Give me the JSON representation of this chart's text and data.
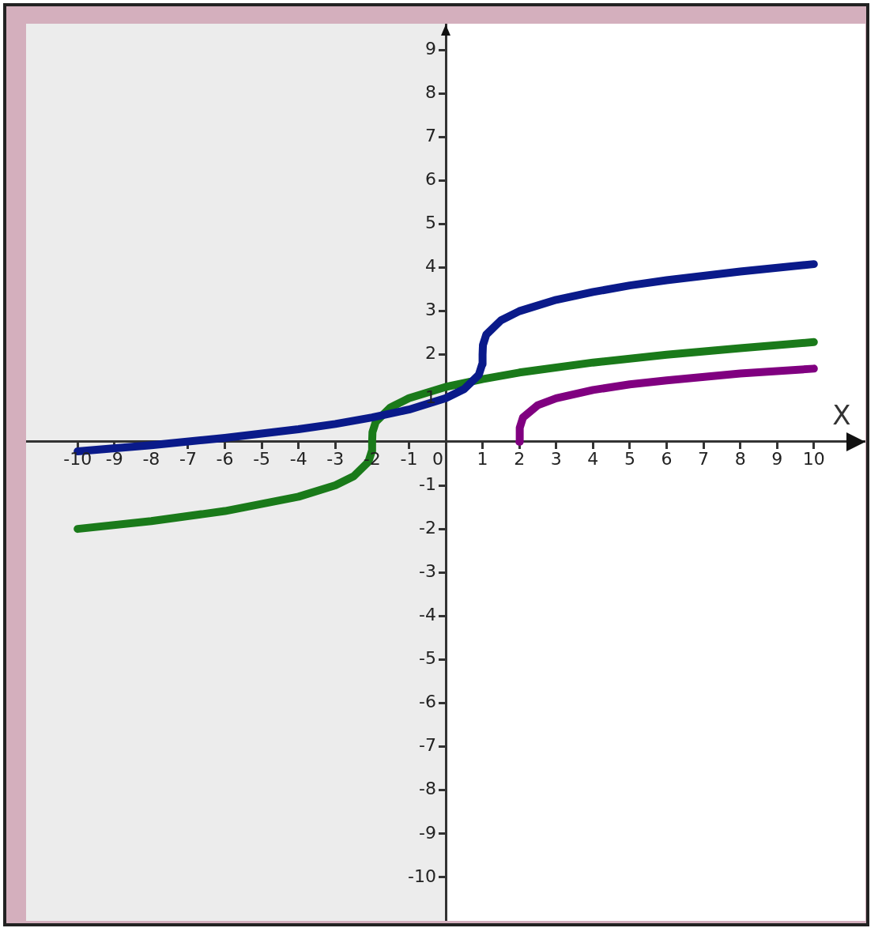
{
  "chart_data": {
    "type": "line",
    "xlabel": "X",
    "xlim": [
      -11.4,
      11.4
    ],
    "ylim": [
      -11,
      9.6
    ],
    "xticks": [
      -10,
      -9,
      -8,
      -7,
      -6,
      -5,
      -4,
      -3,
      -2,
      -1,
      0,
      1,
      2,
      3,
      4,
      5,
      6,
      7,
      8,
      9,
      10
    ],
    "yticks": [
      -10,
      -9,
      -8,
      -7,
      -6,
      -5,
      -4,
      -3,
      -2,
      -1,
      1,
      2,
      3,
      4,
      5,
      6,
      7,
      8,
      9
    ],
    "grid": false,
    "legend": false,
    "marker": "none",
    "line_style": "solid",
    "bands": [
      {
        "axis": "x",
        "from": -11.4,
        "to": 0,
        "color": "#ececec"
      }
    ],
    "series": [
      {
        "color": "#0a1a8a",
        "x": [
          -10,
          -8,
          -6,
          -4,
          -3,
          -2,
          -1,
          0,
          0.5,
          0.9,
          0.99,
          1,
          1.01,
          1.1,
          1.5,
          2,
          3,
          4,
          5,
          6,
          8,
          10
        ],
        "values": [
          -0.22,
          -0.08,
          0.09,
          0.29,
          0.41,
          0.56,
          0.74,
          1,
          1.21,
          1.54,
          1.78,
          2,
          2.22,
          2.46,
          2.79,
          3,
          3.26,
          3.44,
          3.59,
          3.71,
          3.91,
          4.08
        ]
      },
      {
        "color": "#1a7a1a",
        "x": [
          -10,
          -8,
          -6,
          -4,
          -3,
          -2.5,
          -2.1,
          -2.01,
          -2,
          -1.99,
          -1.9,
          -1.5,
          -1,
          0,
          1,
          2,
          4,
          6,
          8,
          10
        ],
        "values": [
          -2,
          -1.82,
          -1.59,
          -1.26,
          -1,
          -0.79,
          -0.46,
          -0.22,
          0,
          0.22,
          0.46,
          0.79,
          1,
          1.26,
          1.44,
          1.59,
          1.82,
          2,
          2.15,
          2.29
        ]
      },
      {
        "color": "#800080",
        "x": [
          2,
          2.01,
          2.1,
          2.5,
          3,
          4,
          5,
          6,
          8,
          10
        ],
        "values": [
          0,
          0.32,
          0.56,
          0.84,
          1,
          1.19,
          1.32,
          1.41,
          1.57,
          1.68
        ]
      }
    ]
  }
}
